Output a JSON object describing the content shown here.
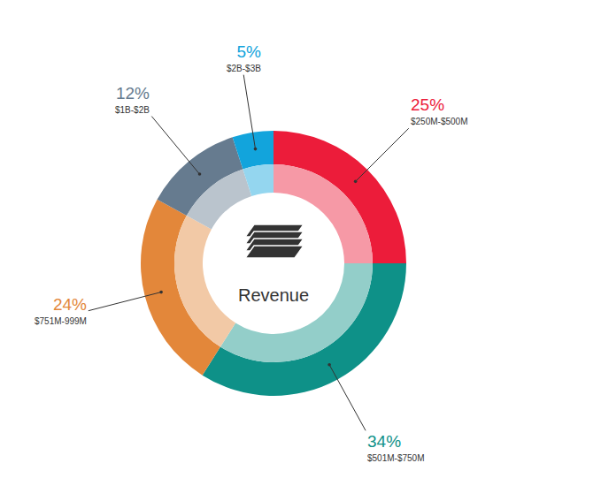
{
  "chart_data": {
    "type": "pie",
    "title": "Revenue",
    "categories": [
      "$250M-$500M",
      "$501M-$750M",
      "$751M-999M",
      "$1B-$2B",
      "$2B-$3B"
    ],
    "values": [
      25,
      34,
      24,
      12,
      5
    ],
    "value_labels": [
      "25%",
      "34%",
      "24%",
      "12%",
      "5%"
    ],
    "colors": [
      "#ec1c3a",
      "#0e9188",
      "#e3873a",
      "#667b8f",
      "#12a4dc"
    ],
    "data_labels": true
  }
}
